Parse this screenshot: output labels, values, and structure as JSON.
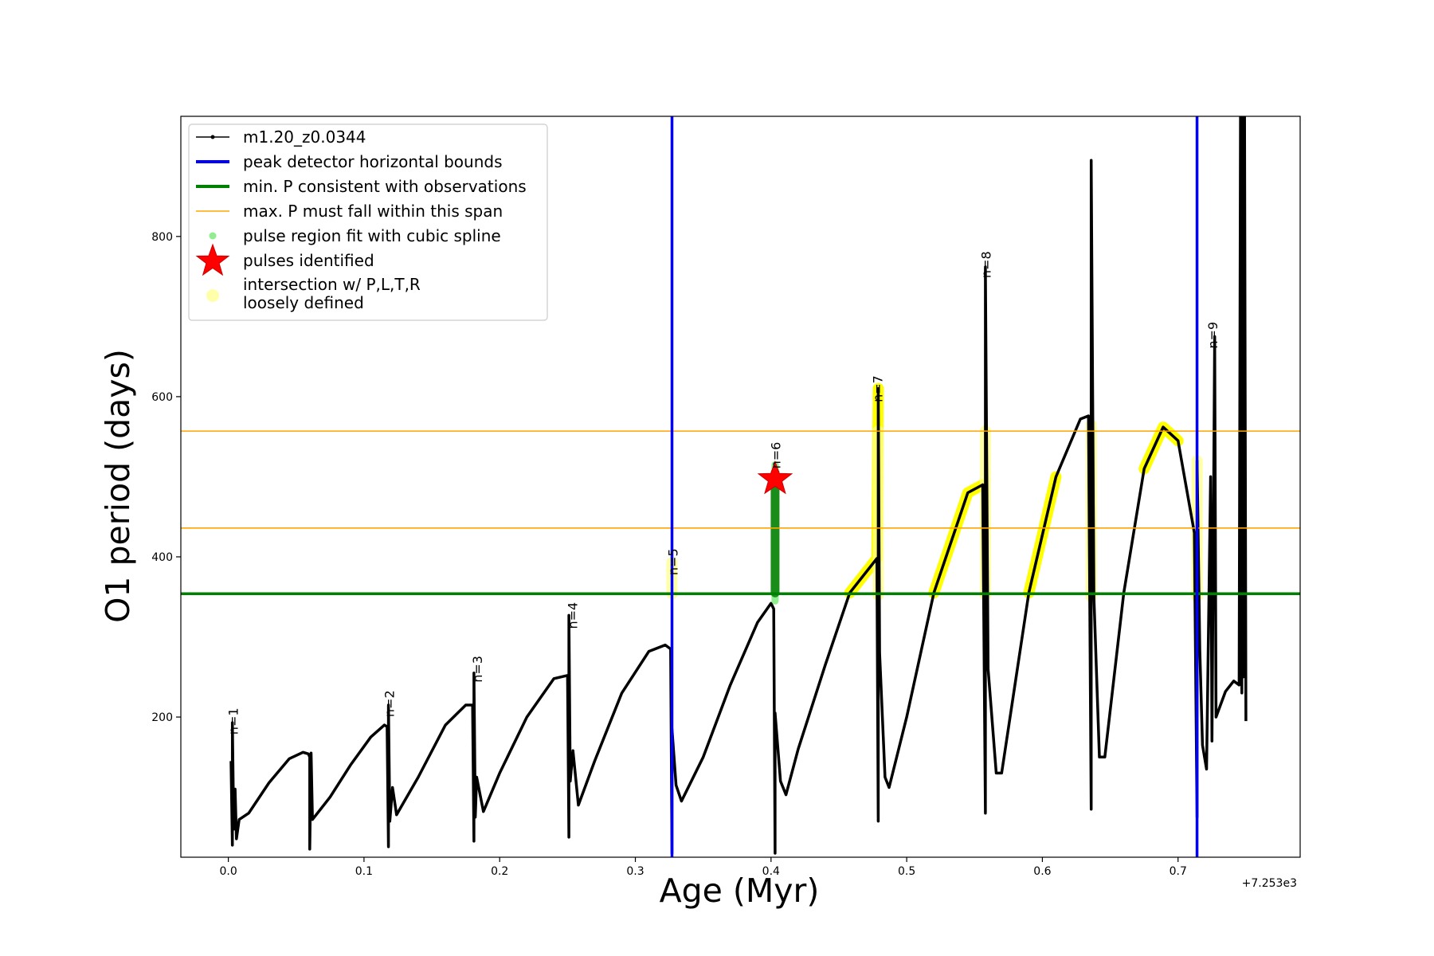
{
  "chart_data": {
    "type": "line",
    "xlabel": "Age (Myr)",
    "ylabel": "O1 period (days)",
    "x_offset_label": "+7.253e3",
    "xlim": [
      -0.035,
      0.79
    ],
    "ylim": [
      25,
      950
    ],
    "xticks": [
      0.0,
      0.1,
      0.2,
      0.3,
      0.4,
      0.5,
      0.6,
      0.7
    ],
    "xtick_labels": [
      "0.0",
      "0.1",
      "0.2",
      "0.3",
      "0.4",
      "0.5",
      "0.6",
      "0.7"
    ],
    "yticks": [
      200,
      400,
      600,
      800
    ],
    "ytick_labels": [
      "200",
      "400",
      "600",
      "800"
    ],
    "legend": {
      "position": "upper-left",
      "entries": [
        {
          "label": "m1.20_z0.0344",
          "style": "line-dot",
          "color": "#000000"
        },
        {
          "label": "peak detector horizontal bounds",
          "style": "thick-line",
          "color": "#0000ff"
        },
        {
          "label": "min. P consistent with observations",
          "style": "thick-line",
          "color": "#008000"
        },
        {
          "label": "max. P must fall within this span",
          "style": "thin-line",
          "color": "#ffa500"
        },
        {
          "label": "pulse region fit with cubic spline",
          "style": "dot",
          "color": "#90ee90"
        },
        {
          "label": "pulses identified",
          "style": "star",
          "color": "#ff0000"
        },
        {
          "label": "intersection w/ P,L,T,R",
          "label2": "loosely defined",
          "style": "big-dot",
          "color": "#ffffaa"
        }
      ]
    },
    "vertical_bounds": [
      0.327,
      0.714
    ],
    "min_period": 354,
    "max_period_span": [
      436,
      557
    ],
    "pulse_identified": {
      "x": 0.403,
      "y": 497
    },
    "spline_region": {
      "x": 0.403,
      "y_min": 345,
      "y_max": 515
    },
    "pulse_labels": [
      {
        "text": "n=1",
        "x": 0.007,
        "y": 178
      },
      {
        "text": "n=2",
        "x": 0.122,
        "y": 200
      },
      {
        "text": "n=3",
        "x": 0.187,
        "y": 243
      },
      {
        "text": "n=4",
        "x": 0.257,
        "y": 310
      },
      {
        "text": "n=5",
        "x": 0.331,
        "y": 377
      },
      {
        "text": "n=6",
        "x": 0.407,
        "y": 510
      },
      {
        "text": "n=7",
        "x": 0.482,
        "y": 593
      },
      {
        "text": "n=8",
        "x": 0.562,
        "y": 748
      },
      {
        "text": "n=9",
        "x": 0.729,
        "y": 660
      }
    ],
    "series": [
      {
        "name": "m1.20_z0.0344",
        "color": "#000000",
        "points": [
          [
            0.002,
            145
          ],
          [
            0.003,
            40
          ],
          [
            0.003,
            193
          ],
          [
            0.004,
            60
          ],
          [
            0.005,
            110
          ],
          [
            0.006,
            48
          ],
          [
            0.008,
            72
          ],
          [
            0.015,
            80
          ],
          [
            0.03,
            118
          ],
          [
            0.045,
            148
          ],
          [
            0.055,
            156
          ],
          [
            0.059,
            154
          ],
          [
            0.06,
            150
          ],
          [
            0.06,
            35
          ],
          [
            0.061,
            155
          ],
          [
            0.062,
            72
          ],
          [
            0.075,
            100
          ],
          [
            0.09,
            140
          ],
          [
            0.105,
            175
          ],
          [
            0.115,
            190
          ],
          [
            0.117,
            188
          ],
          [
            0.118,
            38
          ],
          [
            0.118,
            215
          ],
          [
            0.119,
            70
          ],
          [
            0.121,
            112
          ],
          [
            0.124,
            78
          ],
          [
            0.14,
            125
          ],
          [
            0.16,
            190
          ],
          [
            0.175,
            215
          ],
          [
            0.18,
            215
          ],
          [
            0.181,
            45
          ],
          [
            0.181,
            255
          ],
          [
            0.182,
            75
          ],
          [
            0.183,
            125
          ],
          [
            0.188,
            82
          ],
          [
            0.2,
            130
          ],
          [
            0.22,
            200
          ],
          [
            0.24,
            248
          ],
          [
            0.25,
            252
          ],
          [
            0.251,
            50
          ],
          [
            0.251,
            327
          ],
          [
            0.252,
            120
          ],
          [
            0.254,
            158
          ],
          [
            0.258,
            90
          ],
          [
            0.27,
            145
          ],
          [
            0.29,
            230
          ],
          [
            0.31,
            282
          ],
          [
            0.322,
            290
          ],
          [
            0.326,
            285
          ],
          [
            0.327,
            30
          ],
          [
            0.327,
            185
          ],
          [
            0.33,
            115
          ],
          [
            0.334,
            95
          ],
          [
            0.35,
            150
          ],
          [
            0.37,
            240
          ],
          [
            0.39,
            318
          ],
          [
            0.4,
            342
          ],
          [
            0.402,
            335
          ],
          [
            0.403,
            30
          ],
          [
            0.403,
            205
          ],
          [
            0.407,
            120
          ],
          [
            0.411,
            103
          ],
          [
            0.42,
            160
          ],
          [
            0.44,
            265
          ],
          [
            0.458,
            355
          ],
          [
            0.478,
            398
          ],
          [
            0.479,
            70
          ],
          [
            0.479,
            610
          ],
          [
            0.48,
            280
          ],
          [
            0.484,
            125
          ],
          [
            0.487,
            112
          ],
          [
            0.5,
            200
          ],
          [
            0.52,
            355
          ],
          [
            0.545,
            480
          ],
          [
            0.556,
            490
          ],
          [
            0.558,
            80
          ],
          [
            0.558,
            762
          ],
          [
            0.56,
            260
          ],
          [
            0.566,
            130
          ],
          [
            0.57,
            130
          ],
          [
            0.59,
            355
          ],
          [
            0.61,
            500
          ],
          [
            0.628,
            572
          ],
          [
            0.634,
            576
          ],
          [
            0.636,
            85
          ],
          [
            0.636,
            895
          ],
          [
            0.638,
            350
          ],
          [
            0.642,
            150
          ],
          [
            0.646,
            150
          ],
          [
            0.66,
            355
          ],
          [
            0.675,
            510
          ],
          [
            0.689,
            562
          ],
          [
            0.7,
            545
          ],
          [
            0.712,
            430
          ],
          [
            0.714,
            75
          ],
          [
            0.714,
            520
          ],
          [
            0.716,
            285
          ],
          [
            0.718,
            165
          ],
          [
            0.721,
            135
          ],
          [
            0.724,
            500
          ],
          [
            0.725,
            170
          ],
          [
            0.727,
            675
          ],
          [
            0.728,
            200
          ],
          [
            0.735,
            232
          ],
          [
            0.741,
            245
          ],
          [
            0.745,
            240
          ],
          [
            0.746,
            950
          ],
          [
            0.747,
            230
          ],
          [
            0.748,
            950
          ],
          [
            0.748,
            250
          ],
          [
            0.749,
            950
          ],
          [
            0.75,
            195
          ]
        ]
      }
    ],
    "highlight_segments": [
      {
        "x_from": 0.458,
        "x_to": 0.479,
        "y_top": 402
      },
      {
        "x_from": 0.52,
        "x_to": 0.557,
        "y_top": 487
      },
      {
        "x_from": 0.59,
        "x_to": 0.627,
        "y_top": 560
      },
      {
        "x_from": 0.661,
        "x_to": 0.706,
        "y_top": 562
      }
    ],
    "highlight_columns": [
      {
        "x": 0.327,
        "y_min": 354,
        "y_max": 393
      },
      {
        "x": 0.479,
        "y_min": 352,
        "y_max": 557
      },
      {
        "x": 0.558,
        "y_min": 352,
        "y_max": 557
      },
      {
        "x": 0.636,
        "y_min": 350,
        "y_max": 565
      },
      {
        "x": 0.714,
        "y_min": 350,
        "y_max": 520
      }
    ]
  }
}
